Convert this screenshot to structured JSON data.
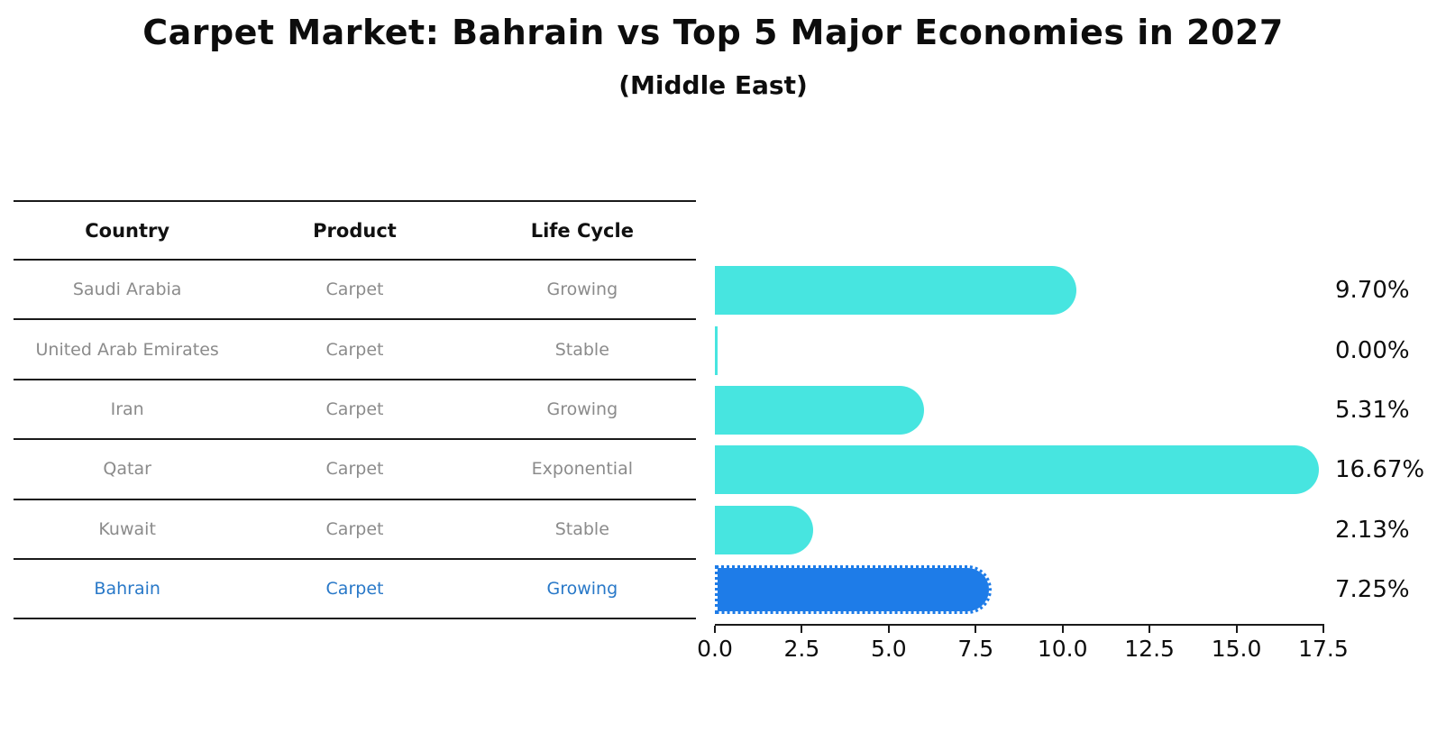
{
  "title": "Carpet Market: Bahrain vs Top 5 Major Economies in 2027",
  "subtitle": "(Middle East)",
  "table": {
    "headers": [
      "Country",
      "Product",
      "Life Cycle"
    ],
    "rows": [
      {
        "country": "Saudi Arabia",
        "product": "Carpet",
        "life_cycle": "Growing",
        "highlight": false
      },
      {
        "country": "United Arab Emirates",
        "product": "Carpet",
        "life_cycle": "Stable",
        "highlight": false
      },
      {
        "country": "Iran",
        "product": "Carpet",
        "life_cycle": "Growing",
        "highlight": false
      },
      {
        "country": "Qatar",
        "product": "Carpet",
        "life_cycle": "Exponential",
        "highlight": false
      },
      {
        "country": "Kuwait",
        "product": "Carpet",
        "life_cycle": "Stable",
        "highlight": false
      },
      {
        "country": "Bahrain",
        "product": "Carpet",
        "life_cycle": "Growing",
        "highlight": true
      }
    ]
  },
  "chart_data": {
    "type": "bar",
    "orientation": "horizontal",
    "title": "Carpet Market: Bahrain vs Top 5 Major Economies in 2027",
    "subtitle": "(Middle East)",
    "categories": [
      "Saudi Arabia",
      "United Arab Emirates",
      "Iran",
      "Qatar",
      "Kuwait",
      "Bahrain"
    ],
    "values": [
      9.7,
      0.0,
      5.31,
      16.67,
      2.13,
      7.25
    ],
    "value_labels": [
      "9.70%",
      "0.00%",
      "5.31%",
      "16.67%",
      "2.13%",
      "7.25%"
    ],
    "unit": "percent",
    "xlim": [
      0,
      17.5
    ],
    "xticks": [
      "0.0",
      "2.5",
      "5.0",
      "7.5",
      "10.0",
      "12.5",
      "15.0",
      "17.5"
    ],
    "grid": false,
    "legend": false,
    "highlight_index": 5,
    "bar_color": "#47e5e0",
    "highlight_color": "#1e7ce8",
    "highlight_text_color": "#2878c8"
  }
}
